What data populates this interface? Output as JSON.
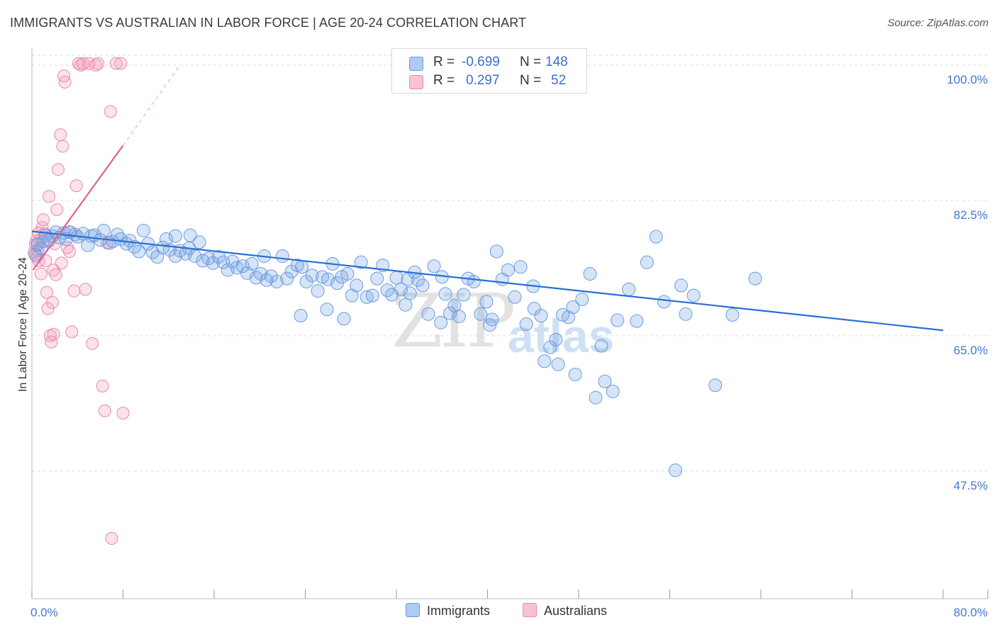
{
  "title": "IMMIGRANTS VS AUSTRALIAN IN LABOR FORCE | AGE 20-24 CORRELATION CHART",
  "source": "Source: ZipAtlas.com",
  "watermark": {
    "zip": "ZIP",
    "atlas": "atlas"
  },
  "legend": {
    "r_label": "R =",
    "n_label": "N =",
    "rows": [
      {
        "r": "-0.699",
        "n": "148",
        "fill": "#aecbf2",
        "stroke": "#6b9be0"
      },
      {
        "r": "0.297",
        "n": "52",
        "fill": "#f7c3d3",
        "stroke": "#e88aa8"
      }
    ]
  },
  "bottom_legend": {
    "immigrants": "Immigrants",
    "australians": "Australians"
  },
  "colors": {
    "blue_fill": "rgba(120,165,230,0.30)",
    "blue_stroke": "#6b9be0",
    "blue_line": "#2a6fd6",
    "pink_fill": "rgba(245,160,190,0.30)",
    "pink_stroke": "#e88aa8",
    "pink_line": "#e0608f",
    "grid": "#dddddd",
    "tick_label": "#4477cc"
  },
  "chart_data": {
    "type": "scatter",
    "title": "IMMIGRANTS VS AUSTRALIAN IN LABOR FORCE | AGE 20-24 CORRELATION CHART",
    "xlabel": "",
    "ylabel": "In Labor Force | Age 20-24",
    "xlim": [
      0,
      80
    ],
    "ylim": [
      31,
      102
    ],
    "x_tick_labels": [
      "0.0%",
      "80.0%"
    ],
    "y_ticks": [
      47.5,
      65.0,
      82.5,
      100.0
    ],
    "y_tick_labels": [
      "47.5%",
      "65.0%",
      "82.5%",
      "100.0%"
    ],
    "series": [
      {
        "name": "Immigrants",
        "r": -0.699,
        "n": 148,
        "trend": {
          "x": [
            0,
            80
          ],
          "y": [
            78.5,
            65.7
          ]
        },
        "points": [
          [
            0.3,
            75.5
          ],
          [
            0.5,
            76.8
          ],
          [
            0.8,
            76.3
          ],
          [
            1.0,
            77.2
          ],
          [
            1.2,
            78.0
          ],
          [
            1.5,
            77.3
          ],
          [
            1.8,
            77.9
          ],
          [
            2.1,
            78.4
          ],
          [
            2.4,
            77.7
          ],
          [
            2.8,
            78.3
          ],
          [
            3.0,
            77.5
          ],
          [
            3.3,
            78.4
          ],
          [
            3.8,
            78.1
          ],
          [
            4.0,
            77.8
          ],
          [
            4.5,
            78.2
          ],
          [
            4.9,
            76.7
          ],
          [
            5.2,
            77.9
          ],
          [
            5.5,
            78.0
          ],
          [
            6.0,
            77.4
          ],
          [
            6.3,
            78.6
          ],
          [
            6.8,
            77.0
          ],
          [
            7.1,
            77.2
          ],
          [
            7.5,
            78.1
          ],
          [
            7.8,
            77.5
          ],
          [
            8.3,
            76.9
          ],
          [
            8.6,
            77.3
          ],
          [
            9.0,
            76.5
          ],
          [
            9.4,
            75.9
          ],
          [
            9.8,
            78.6
          ],
          [
            10.2,
            76.9
          ],
          [
            10.6,
            75.8
          ],
          [
            11.0,
            75.2
          ],
          [
            11.5,
            76.4
          ],
          [
            11.8,
            77.5
          ],
          [
            12.1,
            76.1
          ],
          [
            12.6,
            75.3
          ],
          [
            13.0,
            76.0
          ],
          [
            13.5,
            75.6
          ],
          [
            13.9,
            78.0
          ],
          [
            14.3,
            75.3
          ],
          [
            14.7,
            77.1
          ],
          [
            15.0,
            74.7
          ],
          [
            15.5,
            75.0
          ],
          [
            15.9,
            74.4
          ],
          [
            16.4,
            75.2
          ],
          [
            16.8,
            74.5
          ],
          [
            17.2,
            73.5
          ],
          [
            17.6,
            74.6
          ],
          [
            18.0,
            73.8
          ],
          [
            18.5,
            74.0
          ],
          [
            18.9,
            73.1
          ],
          [
            19.3,
            74.3
          ],
          [
            19.7,
            72.5
          ],
          [
            20.1,
            73.0
          ],
          [
            20.6,
            72.2
          ],
          [
            21.0,
            72.7
          ],
          [
            21.5,
            72.0
          ],
          [
            22.0,
            75.3
          ],
          [
            22.4,
            72.4
          ],
          [
            22.8,
            73.3
          ],
          [
            23.3,
            74.1
          ],
          [
            23.7,
            73.9
          ],
          [
            24.1,
            72.0
          ],
          [
            24.6,
            72.8
          ],
          [
            25.1,
            70.8
          ],
          [
            25.5,
            72.6
          ],
          [
            26.0,
            72.3
          ],
          [
            26.4,
            74.3
          ],
          [
            26.8,
            71.8
          ],
          [
            27.2,
            72.6
          ],
          [
            27.7,
            73.0
          ],
          [
            28.1,
            70.2
          ],
          [
            28.5,
            71.5
          ],
          [
            28.9,
            74.5
          ],
          [
            29.4,
            70.0
          ],
          [
            29.9,
            70.2
          ],
          [
            30.3,
            72.4
          ],
          [
            30.8,
            74.1
          ],
          [
            31.2,
            70.9
          ],
          [
            31.6,
            70.3
          ],
          [
            32.0,
            72.5
          ],
          [
            32.4,
            71.0
          ],
          [
            32.8,
            69.0
          ],
          [
            33.2,
            70.5
          ],
          [
            33.6,
            73.2
          ],
          [
            33.9,
            72.2
          ],
          [
            34.3,
            71.5
          ],
          [
            34.8,
            67.8
          ],
          [
            35.3,
            74.0
          ],
          [
            35.9,
            66.7
          ],
          [
            36.3,
            70.4
          ],
          [
            36.7,
            67.9
          ],
          [
            37.1,
            68.9
          ],
          [
            37.5,
            67.5
          ],
          [
            37.9,
            70.3
          ],
          [
            38.3,
            72.4
          ],
          [
            38.8,
            72.0
          ],
          [
            39.4,
            67.8
          ],
          [
            39.9,
            69.4
          ],
          [
            40.2,
            66.4
          ],
          [
            40.8,
            75.9
          ],
          [
            41.3,
            72.3
          ],
          [
            41.8,
            73.5
          ],
          [
            42.4,
            70.0
          ],
          [
            42.9,
            73.9
          ],
          [
            43.4,
            66.5
          ],
          [
            44.1,
            68.5
          ],
          [
            44.7,
            67.6
          ],
          [
            45.0,
            61.7
          ],
          [
            45.5,
            63.5
          ],
          [
            46.0,
            64.5
          ],
          [
            46.6,
            67.7
          ],
          [
            47.1,
            67.4
          ],
          [
            47.7,
            60.0
          ],
          [
            48.3,
            69.7
          ],
          [
            49.0,
            73.0
          ],
          [
            49.5,
            57.0
          ],
          [
            50.3,
            59.1
          ],
          [
            51.0,
            57.8
          ],
          [
            51.4,
            67.0
          ],
          [
            52.4,
            71.0
          ],
          [
            53.1,
            66.9
          ],
          [
            54.0,
            74.5
          ],
          [
            54.8,
            77.8
          ],
          [
            55.5,
            69.4
          ],
          [
            56.5,
            47.6
          ],
          [
            57.4,
            67.8
          ],
          [
            57.0,
            71.5
          ],
          [
            58.1,
            70.2
          ],
          [
            60.0,
            58.6
          ],
          [
            61.5,
            67.7
          ],
          [
            63.5,
            72.4
          ],
          [
            20.4,
            75.3
          ],
          [
            27.4,
            67.2
          ],
          [
            12.6,
            77.9
          ],
          [
            36.0,
            72.6
          ],
          [
            25.9,
            68.4
          ],
          [
            47.5,
            68.7
          ],
          [
            44.0,
            71.4
          ],
          [
            50.0,
            63.7
          ],
          [
            40.4,
            67.1
          ],
          [
            33.0,
            72.3
          ],
          [
            23.6,
            67.6
          ],
          [
            13.8,
            76.3
          ],
          [
            46.2,
            61.3
          ]
        ]
      },
      {
        "name": "Australians",
        "r": 0.297,
        "n": 52,
        "trend": {
          "x": [
            0.1,
            8.0
          ],
          "y": [
            73.5,
            89.6
          ]
        },
        "trend_dashed": {
          "x": [
            8.0,
            13.0
          ],
          "y": [
            89.6,
            100.0
          ]
        },
        "points": [
          [
            0.2,
            75.8
          ],
          [
            0.3,
            76.8
          ],
          [
            0.4,
            75.2
          ],
          [
            0.5,
            76.0
          ],
          [
            0.6,
            74.7
          ],
          [
            0.7,
            77.3
          ],
          [
            0.9,
            79.0
          ],
          [
            1.0,
            80.0
          ],
          [
            1.1,
            78.2
          ],
          [
            1.3,
            70.6
          ],
          [
            1.4,
            68.5
          ],
          [
            1.5,
            83.0
          ],
          [
            1.6,
            65.0
          ],
          [
            1.7,
            64.2
          ],
          [
            1.8,
            69.3
          ],
          [
            1.9,
            73.5
          ],
          [
            2.0,
            76.9
          ],
          [
            2.2,
            81.3
          ],
          [
            2.3,
            86.5
          ],
          [
            2.5,
            91.0
          ],
          [
            2.7,
            89.5
          ],
          [
            2.9,
            97.8
          ],
          [
            3.1,
            76.4
          ],
          [
            3.3,
            75.9
          ],
          [
            3.5,
            65.5
          ],
          [
            3.7,
            70.8
          ],
          [
            4.1,
            100.2
          ],
          [
            4.3,
            100.0
          ],
          [
            4.5,
            100.2
          ],
          [
            5.0,
            100.2
          ],
          [
            5.6,
            100.0
          ],
          [
            5.8,
            100.2
          ],
          [
            6.2,
            58.5
          ],
          [
            6.4,
            55.3
          ],
          [
            6.9,
            94.0
          ],
          [
            7.4,
            100.2
          ],
          [
            7.8,
            100.2
          ],
          [
            8.0,
            55.0
          ],
          [
            0.8,
            73.0
          ],
          [
            1.2,
            74.7
          ],
          [
            2.6,
            74.4
          ],
          [
            3.4,
            78.4
          ],
          [
            4.7,
            71.0
          ],
          [
            5.3,
            64.0
          ],
          [
            6.6,
            77.0
          ],
          [
            0.4,
            77.3
          ],
          [
            1.9,
            65.2
          ],
          [
            2.1,
            72.9
          ],
          [
            2.8,
            98.6
          ],
          [
            7.0,
            38.8
          ],
          [
            3.9,
            84.4
          ],
          [
            0.6,
            78.3
          ]
        ]
      }
    ]
  }
}
